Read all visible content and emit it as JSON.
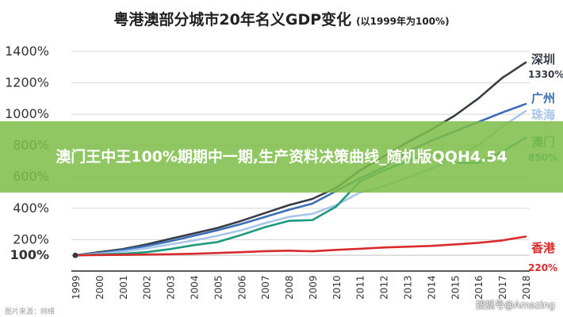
{
  "header": {
    "title": "粤港澳部分城市20年名义GDP变化",
    "subtitle": "(以1999年为100%)"
  },
  "overlay": {
    "banner_text": "澳门王中王100%期期中一期,生产资料决策曲线_随机版QQH4.54",
    "watermark_left": "图片来源：网络",
    "watermark_right": "搜狐号@Amazing"
  },
  "colors": {
    "shenzhen": "#353c46",
    "guangzhou": "#3a6db5",
    "zhuhai": "#a8c6ea",
    "macau": "#1d9a7e",
    "hongkong": "#d92b2b",
    "background": "#ffffff",
    "grid": "#d8d8d8"
  },
  "chart_data": {
    "type": "line",
    "title": "粤港澳部分城市20年名义GDP变化",
    "subtitle": "(以1999年为100%)",
    "xlabel": "",
    "ylabel": "",
    "x": [
      "1999",
      "2000",
      "2001",
      "2002",
      "2003",
      "2004",
      "2005",
      "2006",
      "2007",
      "2008",
      "2009",
      "2010",
      "2011",
      "2012",
      "2013",
      "2014",
      "2015",
      "2016",
      "2017",
      "2018"
    ],
    "yticks": [
      "100%",
      "200%",
      "400%",
      "600%",
      "800%",
      "1000%",
      "1200%",
      "1400%"
    ],
    "ylim": [
      0,
      1450
    ],
    "grid": true,
    "legend": "labels at line ends",
    "series": [
      {
        "name": "深圳",
        "end_label": "1330%",
        "color": "#353c46",
        "values": [
          100,
          120,
          140,
          170,
          205,
          240,
          275,
          320,
          370,
          420,
          460,
          530,
          640,
          730,
          820,
          900,
          990,
          1100,
          1230,
          1330
        ]
      },
      {
        "name": "广州",
        "end_label": "",
        "color": "#3a6db5",
        "values": [
          100,
          115,
          135,
          160,
          190,
          225,
          260,
          300,
          345,
          390,
          430,
          510,
          590,
          660,
          760,
          830,
          890,
          950,
          1010,
          1065
        ]
      },
      {
        "name": "珠海",
        "end_label": "",
        "color": "#a8c6ea",
        "values": [
          100,
          110,
          125,
          145,
          170,
          195,
          225,
          260,
          305,
          345,
          365,
          420,
          500,
          540,
          595,
          650,
          720,
          800,
          920,
          1020
        ]
      },
      {
        "name": "澳门",
        "end_label": "850%",
        "color": "#1d9a7e",
        "values": [
          100,
          105,
          110,
          120,
          140,
          165,
          185,
          230,
          280,
          320,
          325,
          410,
          570,
          640,
          700,
          750,
          690,
          690,
          760,
          850
        ]
      },
      {
        "name": "香港",
        "end_label": "220%",
        "color": "#d92b2b",
        "values": [
          100,
          102,
          103,
          105,
          107,
          110,
          115,
          120,
          127,
          130,
          126,
          135,
          142,
          150,
          155,
          160,
          170,
          180,
          195,
          220
        ]
      }
    ]
  }
}
